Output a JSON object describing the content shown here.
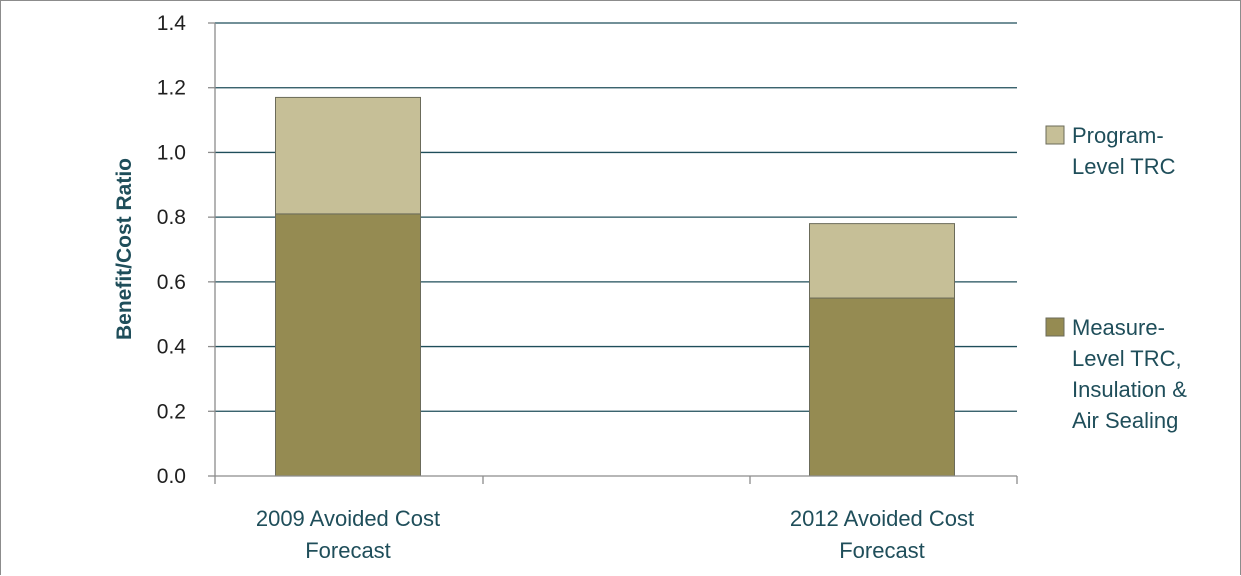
{
  "chart_data": {
    "type": "bar",
    "stacked": true,
    "title": "",
    "xlabel": "",
    "ylabel": "Benefit/Cost Ratio",
    "ylim": [
      0,
      1.4
    ],
    "yticks": [
      "0.0",
      "0.2",
      "0.4",
      "0.6",
      "0.8",
      "1.0",
      "1.2",
      "1.4"
    ],
    "grid": true,
    "legend_position": "right",
    "categories": [
      [
        "2009 Avoided Cost",
        "Forecast"
      ],
      [
        "2012 Avoided Cost",
        "Forecast"
      ]
    ],
    "series": [
      {
        "name": "Measure-Level TRC, Insulation & Air Sealing",
        "legend_lines": [
          "Measure-",
          "Level TRC,",
          "Insulation &",
          "Air Sealing"
        ],
        "values": [
          0.81,
          0.55
        ],
        "color": "#958b52"
      },
      {
        "name": "Program-Level TRC",
        "legend_lines": [
          "Program-",
          "Level TRC"
        ],
        "values": [
          0.36,
          0.23
        ],
        "color": "#c6bf97"
      }
    ],
    "colors": {
      "grid": "#1f4e5a",
      "axis": "#8c8c8c",
      "bar_border": "#6b6b5a"
    }
  }
}
